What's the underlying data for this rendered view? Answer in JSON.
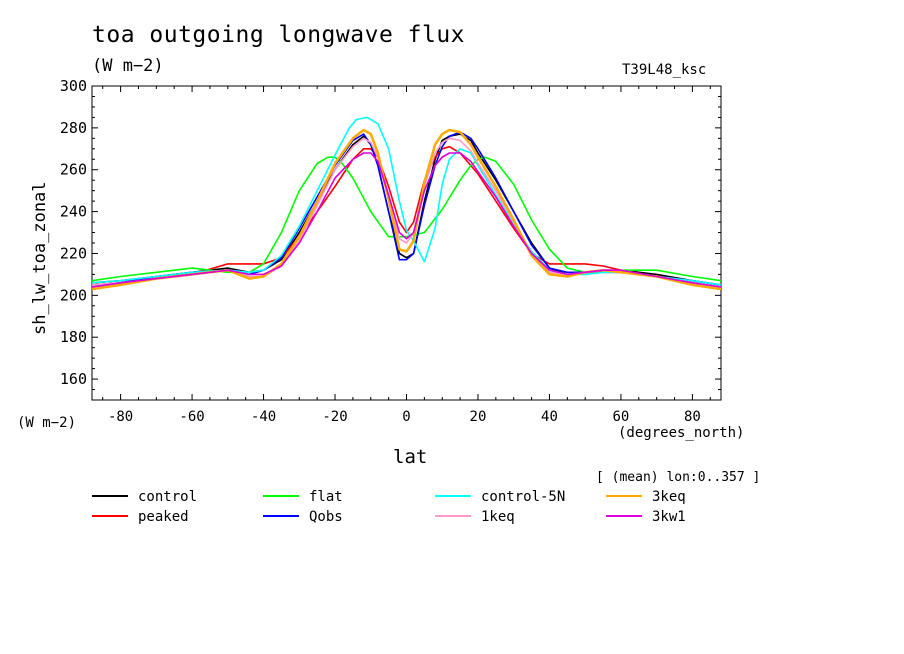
{
  "title": "toa outgoing longwave flux",
  "units": "(W m−2)",
  "run_id": "T39L48_ksc",
  "footer": "[ (mean) lon:0..357 ]",
  "chart_data": {
    "type": "line",
    "xlabel": "lat",
    "xunits": "(degrees_north)",
    "ylabel": "sh_lw_toa_zonal",
    "yunits": "(W m−2)",
    "xlim": [
      -88,
      88
    ],
    "ylim": [
      150,
      300
    ],
    "xticks": [
      -80,
      -60,
      -40,
      -20,
      0,
      20,
      40,
      60,
      80
    ],
    "yticks": [
      160,
      180,
      200,
      220,
      240,
      260,
      280,
      300
    ],
    "grid": false,
    "legend_position": "bottom",
    "series": [
      {
        "name": "control",
        "color": "#000000",
        "x": [
          -88,
          -80,
          -70,
          -60,
          -50,
          -44,
          -40,
          -35,
          -30,
          -25,
          -20,
          -15,
          -12,
          -10,
          -8,
          -5,
          -2,
          0,
          2,
          5,
          8,
          10,
          12,
          15,
          18,
          20,
          25,
          30,
          35,
          40,
          45,
          50,
          55,
          60,
          70,
          80,
          88
        ],
        "y": [
          206,
          207,
          209,
          211,
          213,
          211,
          212,
          217,
          230,
          245,
          260,
          272,
          276,
          272,
          262,
          240,
          220,
          218,
          220,
          245,
          265,
          274,
          276,
          277,
          274,
          268,
          255,
          240,
          225,
          213,
          210,
          211,
          212,
          212,
          210,
          207,
          205
        ]
      },
      {
        "name": "peaked",
        "color": "#ff0000",
        "x": [
          -88,
          -80,
          -70,
          -60,
          -50,
          -44,
          -40,
          -35,
          -30,
          -25,
          -20,
          -15,
          -12,
          -10,
          -8,
          -5,
          -2,
          0,
          2,
          5,
          8,
          10,
          12,
          15,
          18,
          20,
          25,
          30,
          35,
          40,
          45,
          50,
          55,
          60,
          70,
          80,
          88
        ],
        "y": [
          205,
          206,
          208,
          210,
          215,
          215,
          215,
          218,
          228,
          240,
          252,
          265,
          270,
          270,
          266,
          252,
          235,
          230,
          235,
          255,
          266,
          270,
          271,
          268,
          262,
          258,
          245,
          232,
          220,
          215,
          215,
          215,
          214,
          212,
          209,
          206,
          204
        ]
      },
      {
        "name": "flat",
        "color": "#00ff00",
        "x": [
          -88,
          -80,
          -70,
          -60,
          -50,
          -44,
          -40,
          -35,
          -30,
          -25,
          -22,
          -20,
          -18,
          -15,
          -10,
          -5,
          0,
          5,
          10,
          15,
          18,
          20,
          22,
          25,
          30,
          35,
          40,
          45,
          50,
          55,
          60,
          70,
          80,
          88
        ],
        "y": [
          207,
          209,
          211,
          213,
          211,
          211,
          215,
          230,
          250,
          263,
          266,
          266,
          263,
          256,
          240,
          228,
          228,
          230,
          241,
          255,
          262,
          265,
          266,
          264,
          253,
          236,
          222,
          213,
          211,
          211,
          212,
          212,
          209,
          207
        ]
      },
      {
        "name": "Qobs",
        "color": "#0000ff",
        "x": [
          -88,
          -80,
          -70,
          -60,
          -50,
          -44,
          -40,
          -35,
          -30,
          -25,
          -20,
          -15,
          -12,
          -10,
          -8,
          -5,
          -2,
          0,
          2,
          5,
          8,
          10,
          12,
          15,
          18,
          20,
          25,
          30,
          35,
          40,
          45,
          50,
          55,
          60,
          70,
          80,
          88
        ],
        "y": [
          204,
          206,
          209,
          211,
          212,
          210,
          212,
          218,
          232,
          247,
          262,
          274,
          277,
          272,
          262,
          240,
          217,
          217,
          220,
          243,
          262,
          271,
          276,
          278,
          275,
          270,
          256,
          240,
          224,
          213,
          211,
          211,
          211,
          211,
          209,
          207,
          205
        ]
      },
      {
        "name": "control-5N",
        "color": "#00ffff",
        "x": [
          -88,
          -80,
          -70,
          -60,
          -50,
          -44,
          -40,
          -35,
          -30,
          -25,
          -20,
          -16,
          -14,
          -11,
          -8,
          -5,
          -2,
          0,
          2,
          5,
          8,
          10,
          12,
          15,
          18,
          20,
          25,
          30,
          35,
          40,
          45,
          50,
          55,
          60,
          70,
          80,
          88
        ],
        "y": [
          206,
          207,
          209,
          211,
          212,
          211,
          212,
          219,
          233,
          250,
          267,
          280,
          284,
          285,
          282,
          270,
          245,
          231,
          226,
          216,
          232,
          253,
          265,
          270,
          268,
          262,
          248,
          234,
          221,
          212,
          210,
          210,
          211,
          211,
          209,
          207,
          205
        ]
      },
      {
        "name": "1keq",
        "color": "#ff99cc",
        "x": [
          -88,
          -80,
          -70,
          -60,
          -50,
          -44,
          -40,
          -35,
          -30,
          -25,
          -20,
          -15,
          -12,
          -10,
          -8,
          -5,
          -2,
          0,
          2,
          5,
          8,
          10,
          12,
          15,
          18,
          20,
          25,
          30,
          35,
          40,
          45,
          50,
          55,
          60,
          70,
          80,
          88
        ],
        "y": [
          205,
          206,
          208,
          210,
          212,
          209,
          209,
          214,
          226,
          243,
          260,
          271,
          275,
          273,
          266,
          246,
          227,
          225,
          230,
          252,
          268,
          273,
          275,
          274,
          269,
          263,
          250,
          235,
          220,
          211,
          210,
          211,
          212,
          211,
          209,
          206,
          204
        ]
      },
      {
        "name": "3keq",
        "color": "#ffaa00",
        "x": [
          -88,
          -80,
          -70,
          -60,
          -50,
          -44,
          -40,
          -35,
          -30,
          -25,
          -20,
          -15,
          -12,
          -10,
          -8,
          -5,
          -2,
          0,
          2,
          5,
          8,
          10,
          12,
          15,
          18,
          20,
          25,
          30,
          35,
          40,
          45,
          50,
          55,
          60,
          70,
          80,
          88
        ],
        "y": [
          203,
          205,
          208,
          210,
          212,
          208,
          209,
          215,
          228,
          245,
          263,
          275,
          279,
          277,
          268,
          246,
          222,
          221,
          226,
          254,
          272,
          277,
          279,
          278,
          272,
          266,
          252,
          236,
          219,
          210,
          209,
          211,
          212,
          211,
          209,
          205,
          203
        ]
      },
      {
        "name": "3kw1",
        "color": "#dd00dd",
        "x": [
          -88,
          -80,
          -70,
          -60,
          -50,
          -44,
          -40,
          -35,
          -30,
          -25,
          -20,
          -15,
          -12,
          -10,
          -8,
          -5,
          -2,
          0,
          2,
          5,
          8,
          10,
          12,
          15,
          18,
          20,
          25,
          30,
          35,
          40,
          45,
          50,
          55,
          60,
          70,
          80,
          88
        ],
        "y": [
          204,
          206,
          208,
          210,
          212,
          210,
          210,
          214,
          225,
          240,
          256,
          265,
          268,
          268,
          264,
          248,
          230,
          227,
          230,
          250,
          262,
          266,
          268,
          268,
          264,
          259,
          247,
          233,
          220,
          212,
          210,
          211,
          212,
          212,
          209,
          206,
          204
        ]
      }
    ]
  }
}
